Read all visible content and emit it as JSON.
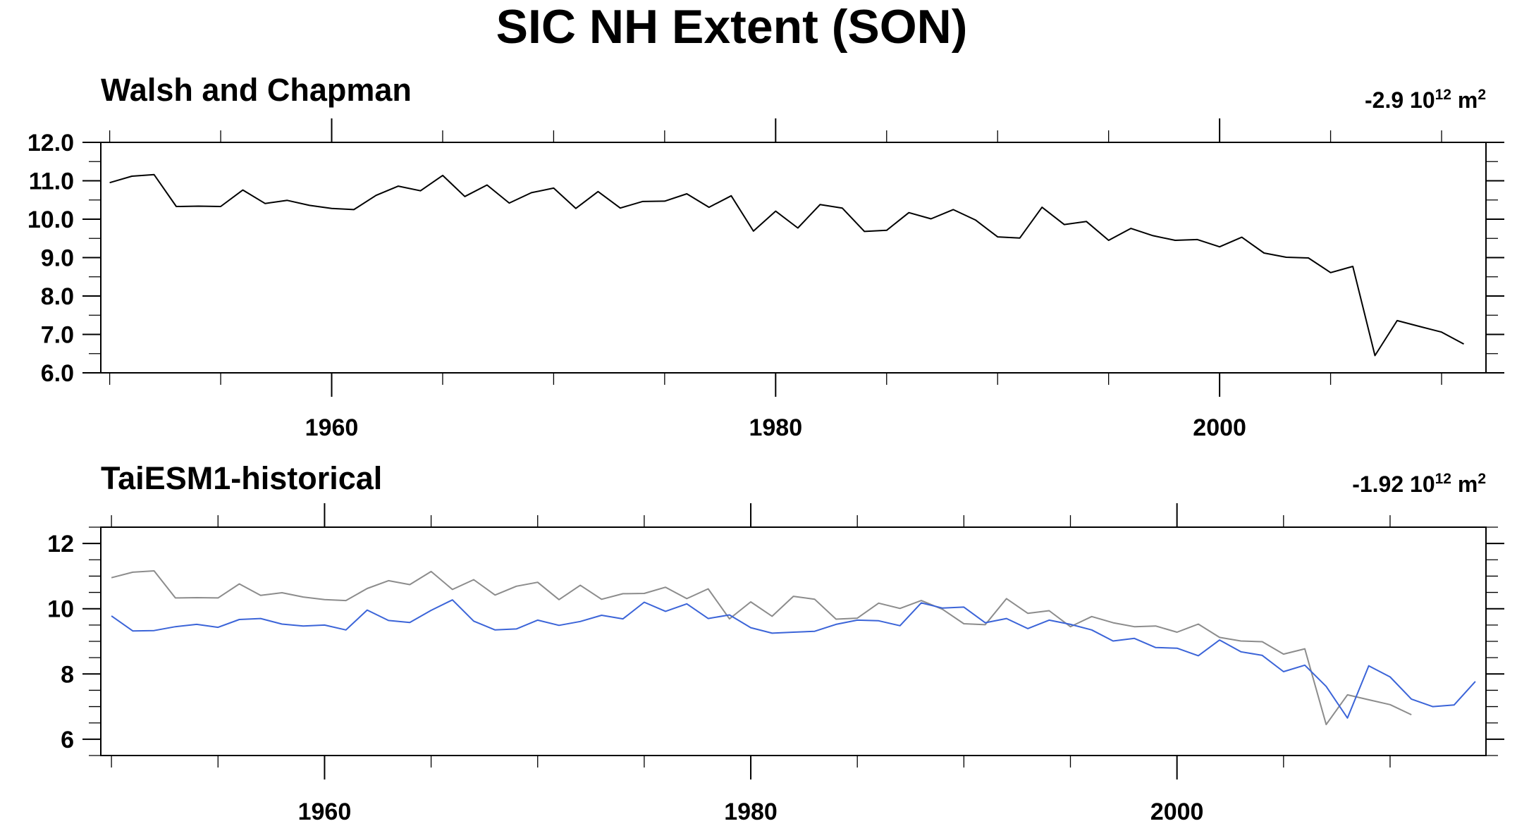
{
  "figure_title": "SIC NH Extent (SON)",
  "colors": {
    "obs": "#000000",
    "obs_gray": "#8c8c8c",
    "model": "#3b64d8"
  },
  "chart_data": [
    {
      "type": "line",
      "title": "Walsh and Chapman",
      "trend_label": {
        "value": "-2.9",
        "base": "10",
        "exp": "12",
        "unit": "m",
        "unit_exp": "2"
      },
      "xlim": [
        1949.6,
        2012
      ],
      "ylim": [
        6.0,
        12.0
      ],
      "xticks": [
        1960,
        1980,
        2000
      ],
      "yticks": [
        6.0,
        7.0,
        8.0,
        9.0,
        10.0,
        11.0,
        12.0
      ],
      "ytick_labels": [
        "6.0",
        "7.0",
        "8.0",
        "9.0",
        "10.0",
        "11.0",
        "12.0"
      ],
      "grid": false,
      "series": [
        {
          "color": "#000000",
          "x_start": 1950,
          "values": [
            10.95,
            11.12,
            11.16,
            10.33,
            10.34,
            10.33,
            10.76,
            10.41,
            10.49,
            10.36,
            10.28,
            10.25,
            10.62,
            10.86,
            10.74,
            11.14,
            10.59,
            10.89,
            10.42,
            10.69,
            10.81,
            10.28,
            10.72,
            10.29,
            10.46,
            10.47,
            10.66,
            10.31,
            10.61,
            9.69,
            10.21,
            9.77,
            10.38,
            10.29,
            9.68,
            9.71,
            10.17,
            10.01,
            10.25,
            9.98,
            9.54,
            9.51,
            10.31,
            9.86,
            9.94,
            9.45,
            9.76,
            9.57,
            9.45,
            9.47,
            9.28,
            9.53,
            9.12,
            9.01,
            8.99,
            8.61,
            8.77,
            6.45,
            7.36,
            7.21,
            7.06,
            6.75
          ]
        }
      ]
    },
    {
      "type": "line",
      "title": "TaiESM1-historical",
      "trend_label": {
        "value": "-1.92",
        "base": "10",
        "exp": "12",
        "unit": "m",
        "unit_exp": "2"
      },
      "xlim": [
        1949.5,
        2014.5
      ],
      "ylim": [
        5.5,
        12.5
      ],
      "xticks": [
        1960,
        1980,
        2000
      ],
      "yticks": [
        6,
        8,
        10,
        12
      ],
      "ytick_labels": [
        "6",
        "8",
        "10",
        "12"
      ],
      "grid": false,
      "series": [
        {
          "color": "#8c8c8c",
          "x_start": 1950,
          "values": [
            10.95,
            11.12,
            11.16,
            10.33,
            10.34,
            10.33,
            10.76,
            10.41,
            10.49,
            10.36,
            10.28,
            10.25,
            10.62,
            10.86,
            10.74,
            11.14,
            10.59,
            10.89,
            10.42,
            10.69,
            10.81,
            10.28,
            10.72,
            10.29,
            10.46,
            10.47,
            10.66,
            10.31,
            10.61,
            9.69,
            10.21,
            9.77,
            10.38,
            10.29,
            9.68,
            9.71,
            10.17,
            10.01,
            10.25,
            9.98,
            9.54,
            9.51,
            10.31,
            9.86,
            9.94,
            9.45,
            9.76,
            9.57,
            9.45,
            9.47,
            9.28,
            9.53,
            9.12,
            9.01,
            8.99,
            8.61,
            8.77,
            6.45,
            7.36,
            7.21,
            7.06,
            6.75
          ]
        },
        {
          "color": "#3b64d8",
          "x_start": 1950,
          "values": [
            9.78,
            9.32,
            9.33,
            9.45,
            9.52,
            9.43,
            9.67,
            9.7,
            9.53,
            9.47,
            9.5,
            9.35,
            9.96,
            9.64,
            9.58,
            9.95,
            10.27,
            9.62,
            9.35,
            9.38,
            9.65,
            9.49,
            9.61,
            9.8,
            9.69,
            10.2,
            9.92,
            10.15,
            9.7,
            9.81,
            9.42,
            9.25,
            9.28,
            9.31,
            9.52,
            9.65,
            9.63,
            9.48,
            10.18,
            10.02,
            10.05,
            9.57,
            9.7,
            9.39,
            9.65,
            9.52,
            9.35,
            9.01,
            9.09,
            8.81,
            8.79,
            8.56,
            9.04,
            8.68,
            8.57,
            8.07,
            8.27,
            7.62,
            6.65,
            8.25,
            7.91,
            7.23,
            7.0,
            7.05,
            7.77
          ]
        }
      ]
    }
  ]
}
